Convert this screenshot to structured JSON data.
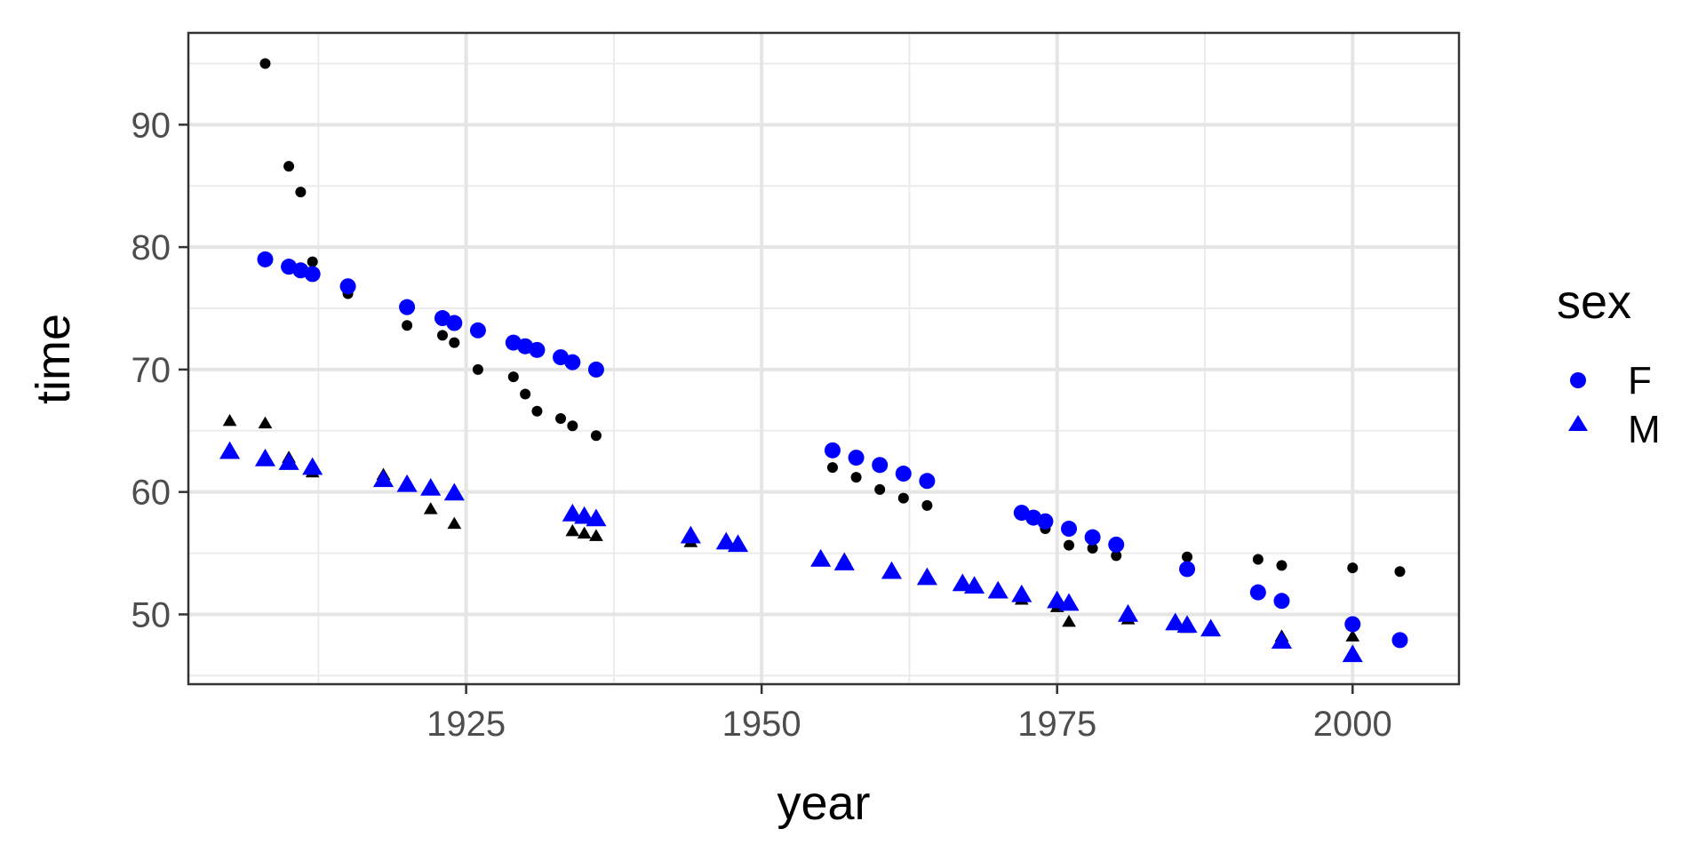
{
  "chart_data": {
    "type": "scatter",
    "xlabel": "year",
    "ylabel": "time",
    "xlim": [
      1901.5,
      2009
    ],
    "ylim": [
      44.3,
      97.5
    ],
    "x_ticks": [
      1925,
      1950,
      1975,
      2000
    ],
    "y_ticks": [
      50,
      60,
      70,
      80,
      90
    ],
    "grid": true,
    "legend": {
      "title": "sex",
      "position": "right",
      "entries": [
        "F",
        "M"
      ]
    },
    "colors": {
      "fit": "#0000ff",
      "observed": "#000000"
    },
    "series": [
      {
        "group": "observed",
        "sex": "F",
        "shape": "circle",
        "points": [
          [
            1908,
            95.0
          ],
          [
            1910,
            86.6
          ],
          [
            1911,
            84.5
          ],
          [
            1912,
            78.8
          ],
          [
            1915,
            76.2
          ],
          [
            1920,
            73.6
          ],
          [
            1923,
            72.8
          ],
          [
            1924,
            72.2
          ],
          [
            1926,
            70.0
          ],
          [
            1929,
            69.4
          ],
          [
            1930,
            68.0
          ],
          [
            1931,
            66.6
          ],
          [
            1933,
            66.0
          ],
          [
            1934,
            65.4
          ],
          [
            1936,
            64.6
          ],
          [
            1956,
            62.0
          ],
          [
            1958,
            61.2
          ],
          [
            1960,
            60.2
          ],
          [
            1962,
            59.5
          ],
          [
            1964,
            58.9
          ],
          [
            1972,
            58.5
          ],
          [
            1974,
            57.0
          ],
          [
            1976,
            55.65
          ],
          [
            1978,
            55.4
          ],
          [
            1980,
            54.8
          ],
          [
            1986,
            54.7
          ],
          [
            1992,
            54.5
          ],
          [
            1994,
            54.0
          ],
          [
            2000,
            53.8
          ],
          [
            2004,
            53.5
          ]
        ]
      },
      {
        "group": "observed",
        "sex": "M",
        "shape": "triangle",
        "points": [
          [
            1905,
            65.8
          ],
          [
            1908,
            65.6
          ],
          [
            1910,
            62.8
          ],
          [
            1912,
            61.6
          ],
          [
            1918,
            61.4
          ],
          [
            1920,
            60.6
          ],
          [
            1922,
            58.6
          ],
          [
            1924,
            57.4
          ],
          [
            1934,
            56.8
          ],
          [
            1935,
            56.6
          ],
          [
            1936,
            56.4
          ],
          [
            1944,
            55.9
          ],
          [
            1947,
            55.8
          ],
          [
            1948,
            55.6
          ],
          [
            1955,
            54.6
          ],
          [
            1957,
            54.5
          ],
          [
            1961,
            53.6
          ],
          [
            1964,
            52.9
          ],
          [
            1967,
            52.6
          ],
          [
            1968,
            52.2
          ],
          [
            1970,
            51.9
          ],
          [
            1972,
            51.2
          ],
          [
            1975,
            50.6
          ],
          [
            1976,
            49.4
          ],
          [
            1981,
            49.6
          ],
          [
            1985,
            49.2
          ],
          [
            1986,
            48.9
          ],
          [
            1988,
            48.8
          ],
          [
            1994,
            48.2
          ],
          [
            2000,
            48.2
          ]
        ]
      },
      {
        "group": "fit",
        "sex": "F",
        "shape": "circle",
        "points": [
          [
            1908,
            79.0
          ],
          [
            1910,
            78.4
          ],
          [
            1911,
            78.1
          ],
          [
            1912,
            77.8
          ],
          [
            1915,
            76.8
          ],
          [
            1920,
            75.1
          ],
          [
            1923,
            74.2
          ],
          [
            1924,
            73.8
          ],
          [
            1926,
            73.2
          ],
          [
            1929,
            72.2
          ],
          [
            1930,
            71.9
          ],
          [
            1931,
            71.6
          ],
          [
            1933,
            71.0
          ],
          [
            1934,
            70.6
          ],
          [
            1936,
            70.0
          ],
          [
            1956,
            63.4
          ],
          [
            1958,
            62.8
          ],
          [
            1960,
            62.2
          ],
          [
            1962,
            61.5
          ],
          [
            1964,
            60.9
          ],
          [
            1972,
            58.3
          ],
          [
            1973,
            57.9
          ],
          [
            1974,
            57.6
          ],
          [
            1976,
            57.0
          ],
          [
            1978,
            56.3
          ],
          [
            1980,
            55.7
          ],
          [
            1986,
            53.7
          ],
          [
            1992,
            51.8
          ],
          [
            1994,
            51.1
          ],
          [
            2000,
            49.2
          ],
          [
            2004,
            47.9
          ]
        ]
      },
      {
        "group": "fit",
        "sex": "M",
        "shape": "triangle",
        "points": [
          [
            1905,
            63.3
          ],
          [
            1908,
            62.7
          ],
          [
            1910,
            62.4
          ],
          [
            1912,
            62.0
          ],
          [
            1918,
            61.0
          ],
          [
            1920,
            60.6
          ],
          [
            1922,
            60.3
          ],
          [
            1924,
            59.9
          ],
          [
            1934,
            58.2
          ],
          [
            1935,
            58.0
          ],
          [
            1936,
            57.8
          ],
          [
            1944,
            56.4
          ],
          [
            1947,
            55.9
          ],
          [
            1948,
            55.7
          ],
          [
            1955,
            54.5
          ],
          [
            1957,
            54.2
          ],
          [
            1961,
            53.5
          ],
          [
            1964,
            53.0
          ],
          [
            1967,
            52.5
          ],
          [
            1968,
            52.3
          ],
          [
            1970,
            51.9
          ],
          [
            1972,
            51.6
          ],
          [
            1975,
            51.1
          ],
          [
            1976,
            50.9
          ],
          [
            1981,
            50.0
          ],
          [
            1985,
            49.3
          ],
          [
            1986,
            49.1
          ],
          [
            1988,
            48.8
          ],
          [
            1994,
            47.8
          ],
          [
            2000,
            46.7
          ]
        ]
      }
    ]
  }
}
